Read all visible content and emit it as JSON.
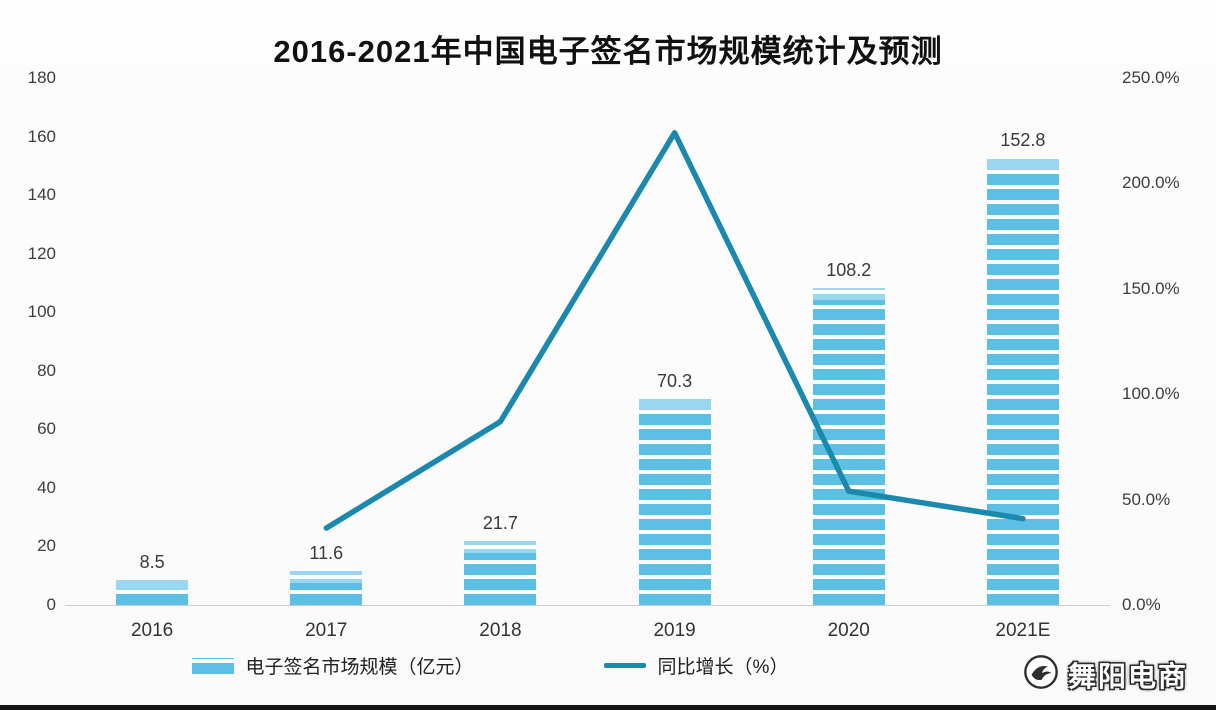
{
  "title": "2016-2021年中国电子签名市场规模统计及预测",
  "colors": {
    "bar": "#5cbfe4",
    "bar_cap": "#a9dcef",
    "line": "#1b89ad",
    "axis_text": "#3d3d3d"
  },
  "chart_data": {
    "type": "bar+line combo",
    "title": "2016-2021年中国电子签名市场规模统计及预测",
    "categories": [
      "2016",
      "2017",
      "2018",
      "2019",
      "2020",
      "2021E"
    ],
    "series": [
      {
        "name": "电子签名市场规模（亿元）",
        "type": "bar",
        "axis": "left",
        "values": [
          8.5,
          11.6,
          21.7,
          70.3,
          108.2,
          152.8
        ],
        "color": "#5cbfe4"
      },
      {
        "name": "同比增长（%）",
        "type": "line",
        "axis": "right",
        "values": [
          null,
          36.5,
          87.0,
          224.0,
          54.0,
          41.0
        ],
        "color": "#1b89ad",
        "note": "values estimated from line position; no data labels shown"
      }
    ],
    "bar_labels": [
      "8.5",
      "11.6",
      "21.7",
      "70.3",
      "108.2",
      "152.8"
    ],
    "left_axis": {
      "min": 0,
      "max": 180,
      "step": 20,
      "tick_values": [
        180,
        160,
        140,
        120,
        100,
        80,
        60,
        40,
        20,
        0
      ],
      "tick_labels": [
        "180",
        "160",
        "140",
        "120",
        "100",
        "80",
        "60",
        "40",
        "20",
        "0"
      ]
    },
    "right_axis": {
      "min": 0,
      "max": 250,
      "step": 50,
      "tick_values": [
        250,
        200,
        150,
        100,
        50,
        0
      ],
      "tick_labels": [
        "250.0%",
        "200.0%",
        "150.0%",
        "100.0%",
        "50.0%",
        "0.0%"
      ]
    },
    "grid": "off",
    "legend_position": "bottom"
  },
  "watermark": {
    "text": "舞阳电商"
  }
}
